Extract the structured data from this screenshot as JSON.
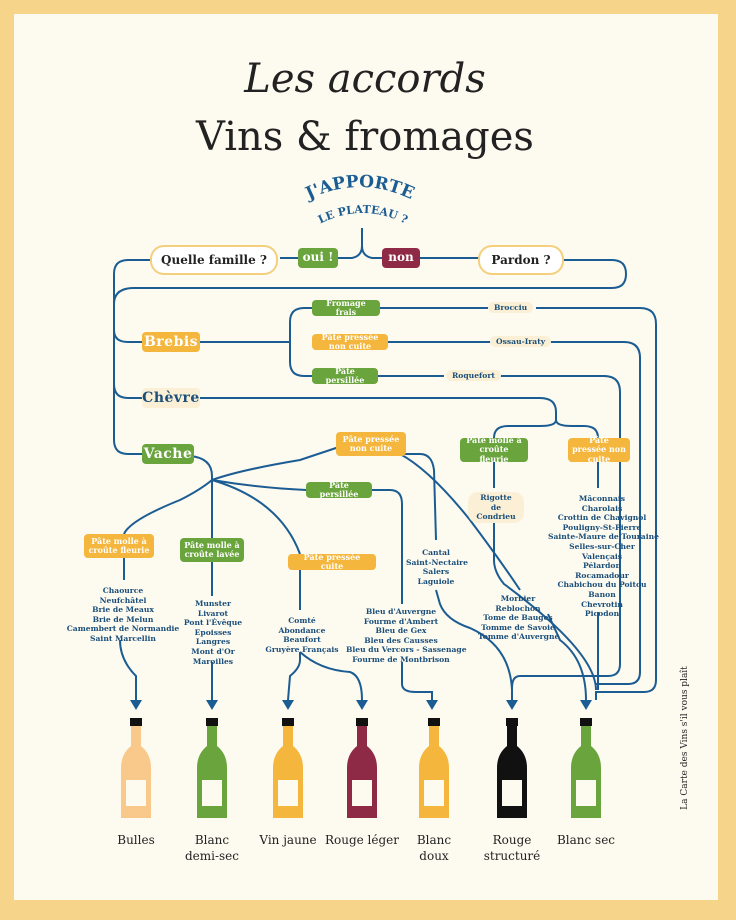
{
  "title": {
    "line1": "Les accords",
    "line2": "Vins & fromages"
  },
  "question": {
    "line1": "J'APPORTE",
    "line2": "LE PLATEAU ?"
  },
  "decision": {
    "left": "Quelle famille ?",
    "yes": "oui !",
    "no": "non",
    "right": "Pardon ?"
  },
  "animals": {
    "brebis": "Brebis",
    "chevre": "Chèvre",
    "vache": "Vache"
  },
  "brebis_types": [
    {
      "label": "Fromage frais",
      "cheese": "Brocciu"
    },
    {
      "label": "Pâte pressée non cuite",
      "cheese": "Ossau-Iraty"
    },
    {
      "label": "Pâte persillée",
      "cheese": "Roquefort"
    }
  ],
  "chevre_types": [
    {
      "label": "Pâte molle à croûte fleurie",
      "cheese": "Rigotte de Condrieu"
    },
    {
      "label": "Pâte pressée non cuite",
      "cheeses": [
        "Mâconnais",
        "Charolais",
        "Crottin de Chavignol",
        "Pouligny-St-Pierre",
        "Sainte-Maure de Touraine",
        "Selles-sur-Cher",
        "Valençais",
        "Pélardon",
        "Rocamadour",
        "Chabichou du Poitou",
        "Banon",
        "Chevrotin",
        "Picodon"
      ]
    }
  ],
  "vache_types": {
    "croute_fleurie": {
      "label": "Pâte molle à croûte fleurie",
      "cheeses": [
        "Chaource",
        "Neufchâtel",
        "Brie de Meaux",
        "Brie de Melun",
        "Camembert de Normandie",
        "Saint Marcellin"
      ]
    },
    "croute_lavee": {
      "label": "Pâte molle à croûte lavée",
      "cheeses": [
        "Munster",
        "Livarot",
        "Pont l'Évêque",
        "Epoisses",
        "Langres",
        "Mont d'Or",
        "Maroilles"
      ]
    },
    "pressee_cuite": {
      "label": "Pâte pressée cuite",
      "cheeses": [
        "Comté",
        "Abondance",
        "Beaufort",
        "Gruyère Français"
      ]
    },
    "persillee": {
      "label": "Pâte persillée",
      "cheeses": [
        "Bleu d'Auvergne",
        "Fourme d'Ambert",
        "Bleu de Gex",
        "Bleu des Causses",
        "Bleu du Vercors - Sassenage",
        "Fourme de Montbrison"
      ]
    },
    "pressee_non_cuite": {
      "label": "Pâte pressée non cuite",
      "cheeses_a": [
        "Cantal",
        "Saint-Nectaire",
        "Salers",
        "Laguiole"
      ],
      "cheeses_b": [
        "Morbier",
        "Reblochon",
        "Tome de Bauges",
        "Tomme de Savoie",
        "Tomme d'Auvergne"
      ]
    }
  },
  "wines": [
    {
      "label": "Bulles",
      "color": "#f8c98a"
    },
    {
      "label": "Blanc\ndemi-sec",
      "color": "#6aa43c"
    },
    {
      "label": "Vin jaune",
      "color": "#f4b63d"
    },
    {
      "label": "Rouge léger",
      "color": "#8e2a45"
    },
    {
      "label": "Blanc\ndoux",
      "color": "#f4b63d"
    },
    {
      "label": "Rouge\nstructuré",
      "color": "#111111"
    },
    {
      "label": "Blanc sec",
      "color": "#6aa43c"
    }
  ],
  "side_text": "La Carte des Vins s'il vous plaît",
  "colors": {
    "line": "#1b5d93",
    "green": "#6aa43c",
    "orange": "#f4b63d",
    "no": "#8e2a45",
    "background": "#fdfaf0",
    "border": "#f6d58b"
  }
}
